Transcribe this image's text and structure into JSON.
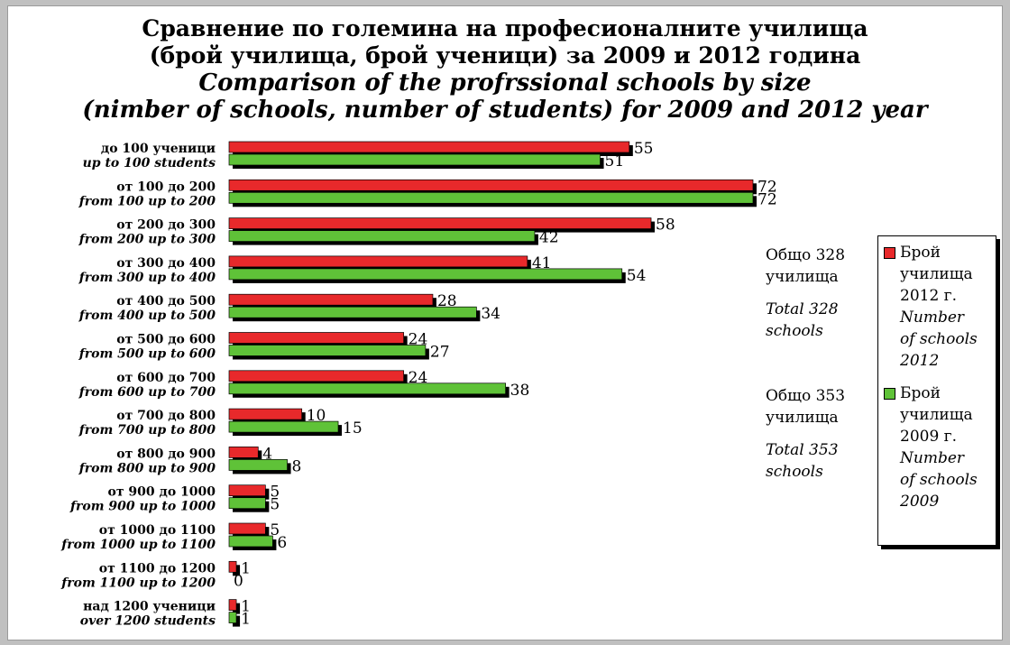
{
  "chart_data": {
    "type": "bar",
    "orientation": "horizontal",
    "title": "Сравнение по големина на професионалните училища",
    "title_line2": "(брой училища, брой ученици) за 2009 и 2012 година",
    "subtitle": "Comparison of the profrssional schools by size",
    "subtitle_line2": "(nimber of schools, number of students) for 2009 and 2012 year",
    "categories": [
      {
        "bg": "до 100 ученици",
        "en": "up to 100 students"
      },
      {
        "bg": "от 100 до 200",
        "en": "from 100 up to 200"
      },
      {
        "bg": "от 200 до 300",
        "en": "from 200 up to 300"
      },
      {
        "bg": "от 300 до 400",
        "en": "from 300 up to 400"
      },
      {
        "bg": "от 400 до 500",
        "en": "from 400 up to 500"
      },
      {
        "bg": "от 500 до 600",
        "en": "from 500 up to 600"
      },
      {
        "bg": "от 600 до 700",
        "en": "from 600 up to 700"
      },
      {
        "bg": "от 700 до 800",
        "en": "from 700 up to 800"
      },
      {
        "bg": "от 800 до 900",
        "en": "from 800 up to 900"
      },
      {
        "bg": "от 900 до 1000",
        "en": "from 900 up to 1000"
      },
      {
        "bg": "от 1000 до 1100",
        "en": "from 1000 up to 1100"
      },
      {
        "bg": "от 1100 до 1200",
        "en": "from 1100 up to 1200"
      },
      {
        "bg": "над 1200 ученици",
        "en": "over 1200 students"
      }
    ],
    "series": [
      {
        "name": "Брой училища 2012 г.",
        "name_lines": [
          "Брой",
          "училища",
          "2012 г.",
          "Number",
          "of schools",
          "2012"
        ],
        "color": "#e8292b",
        "values": [
          55,
          72,
          58,
          41,
          28,
          24,
          24,
          10,
          4,
          5,
          5,
          1,
          1
        ]
      },
      {
        "name": "Брой училища 2009 г.",
        "name_lines": [
          "Брой",
          "училища",
          "2009 г.",
          "Number",
          "of schools",
          "2009"
        ],
        "color": "#5fc238",
        "values": [
          51,
          72,
          42,
          54,
          34,
          27,
          38,
          15,
          8,
          5,
          6,
          0,
          1
        ]
      }
    ],
    "xlim": [
      0,
      72
    ],
    "grid": false,
    "legend_position": "right",
    "totals": [
      {
        "bg": "Общо 328 училища",
        "en": "Total 328 schools"
      },
      {
        "bg": "Общо 353 училища",
        "en": "Total 353 schools"
      }
    ]
  }
}
